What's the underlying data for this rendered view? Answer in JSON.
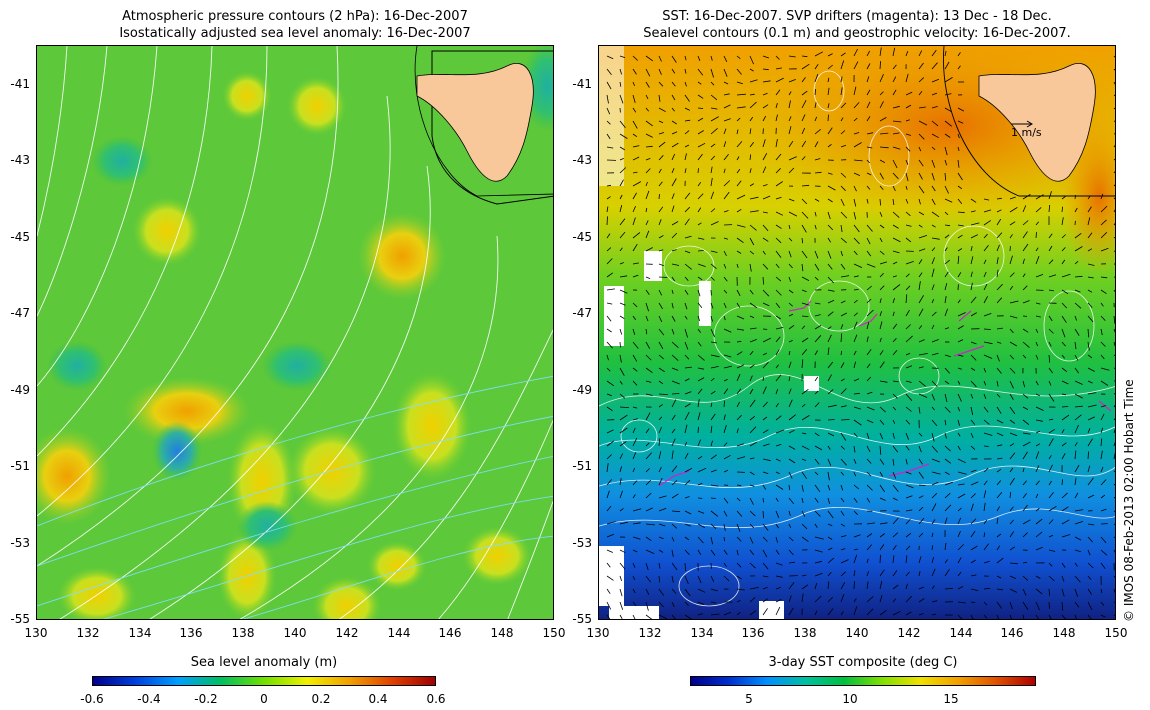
{
  "left_panel": {
    "title_line1": "Atmospheric pressure contours (2 hPa): 16-Dec-2007",
    "title_line2": "Isostatically adjusted sea level anomaly: 16-Dec-2007",
    "colorbar_label": "Sea level anomaly (m)",
    "colorbar_ticks": [
      "-0.6",
      "-0.4",
      "-0.2",
      "0",
      "0.2",
      "0.4",
      "0.6"
    ],
    "colorbar_colors": [
      "#00008b",
      "#0040e0",
      "#00a0ff",
      "#00c060",
      "#70e000",
      "#f0f000",
      "#f0a000",
      "#e04000",
      "#a00000"
    ]
  },
  "right_panel": {
    "title_line1": "SST: 16-Dec-2007. SVP drifters (magenta): 13 Dec - 18 Dec.",
    "title_line2": "Sealevel contours (0.1 m) and geostrophic velocity: 16-Dec-2007.",
    "scale_label": "1 m/s",
    "colorbar_label": "3-day SST composite (deg C)",
    "colorbar_ticks": [
      "5",
      "10",
      "15"
    ],
    "colorbar_colors": [
      "#00008b",
      "#0030d0",
      "#0090ff",
      "#00c0a0",
      "#00c040",
      "#80e000",
      "#f0e000",
      "#f0a000",
      "#e05000",
      "#b00000"
    ]
  },
  "axes": {
    "lat_ticks": [
      "-41",
      "-43",
      "-45",
      "-47",
      "-49",
      "-51",
      "-53",
      "-55"
    ],
    "lon_ticks": [
      "130",
      "132",
      "134",
      "136",
      "138",
      "140",
      "142",
      "144",
      "146",
      "148",
      "150"
    ]
  },
  "credit": "© IMOS 08-Feb-2013 02:00 Hobart Time",
  "colors": {
    "land": "#f9c89a",
    "sla_base": "#5cc83a",
    "sst_warm": "#f08c00",
    "sst_mid": "#30c040",
    "sst_cold": "#1050d0"
  }
}
